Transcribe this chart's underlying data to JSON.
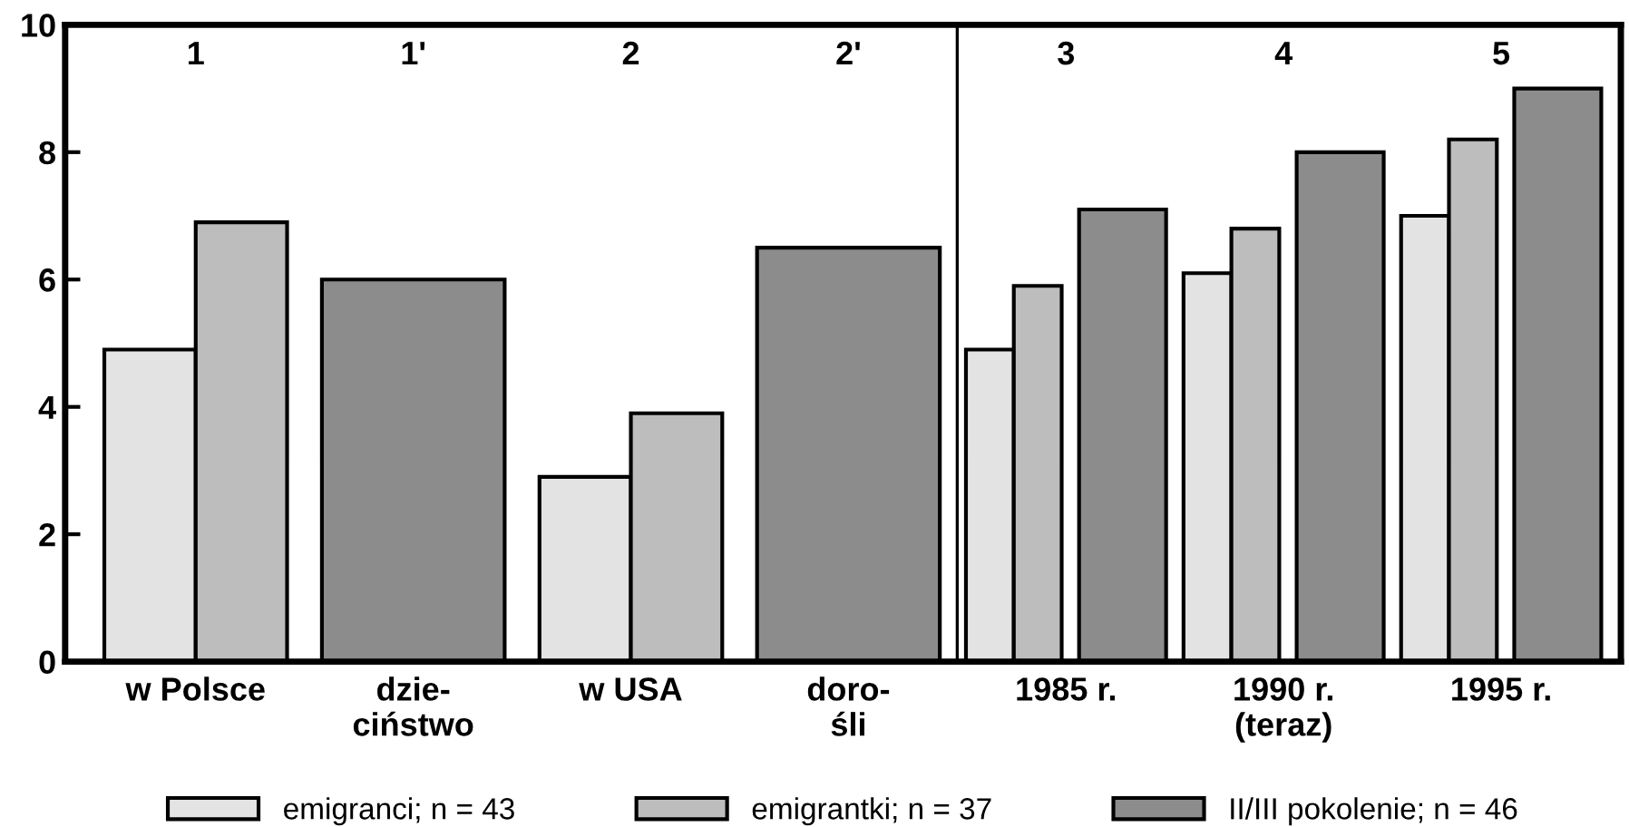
{
  "chart_data": {
    "type": "bar",
    "categories": [
      "w Polsce",
      "dzie-\nciństwo",
      "w USA",
      "doro-\nśli",
      "1985 r.",
      "1990 r.\n(teraz)",
      "1995 r."
    ],
    "series": [
      {
        "name": "emigranci; n = 43",
        "color": "#e3e3e3",
        "values": [
          4.9,
          null,
          2.9,
          null,
          4.9,
          6.1,
          7.0
        ]
      },
      {
        "name": "emigrantki; n = 37",
        "color": "#bdbdbd",
        "values": [
          6.9,
          null,
          3.9,
          null,
          5.9,
          6.8,
          8.2
        ]
      },
      {
        "name": "II/III pokolenie; n = 46",
        "color": "#8c8c8c",
        "values": [
          null,
          6.0,
          null,
          6.5,
          7.1,
          8.0,
          9.0
        ]
      }
    ],
    "ylim": [
      0,
      10
    ],
    "yticks": [
      0,
      2,
      4,
      6,
      8,
      10
    ],
    "annotations": [
      "1",
      "1'",
      "2",
      "2'",
      "3",
      "4",
      "5"
    ],
    "grid": false,
    "legend": "bottom"
  }
}
